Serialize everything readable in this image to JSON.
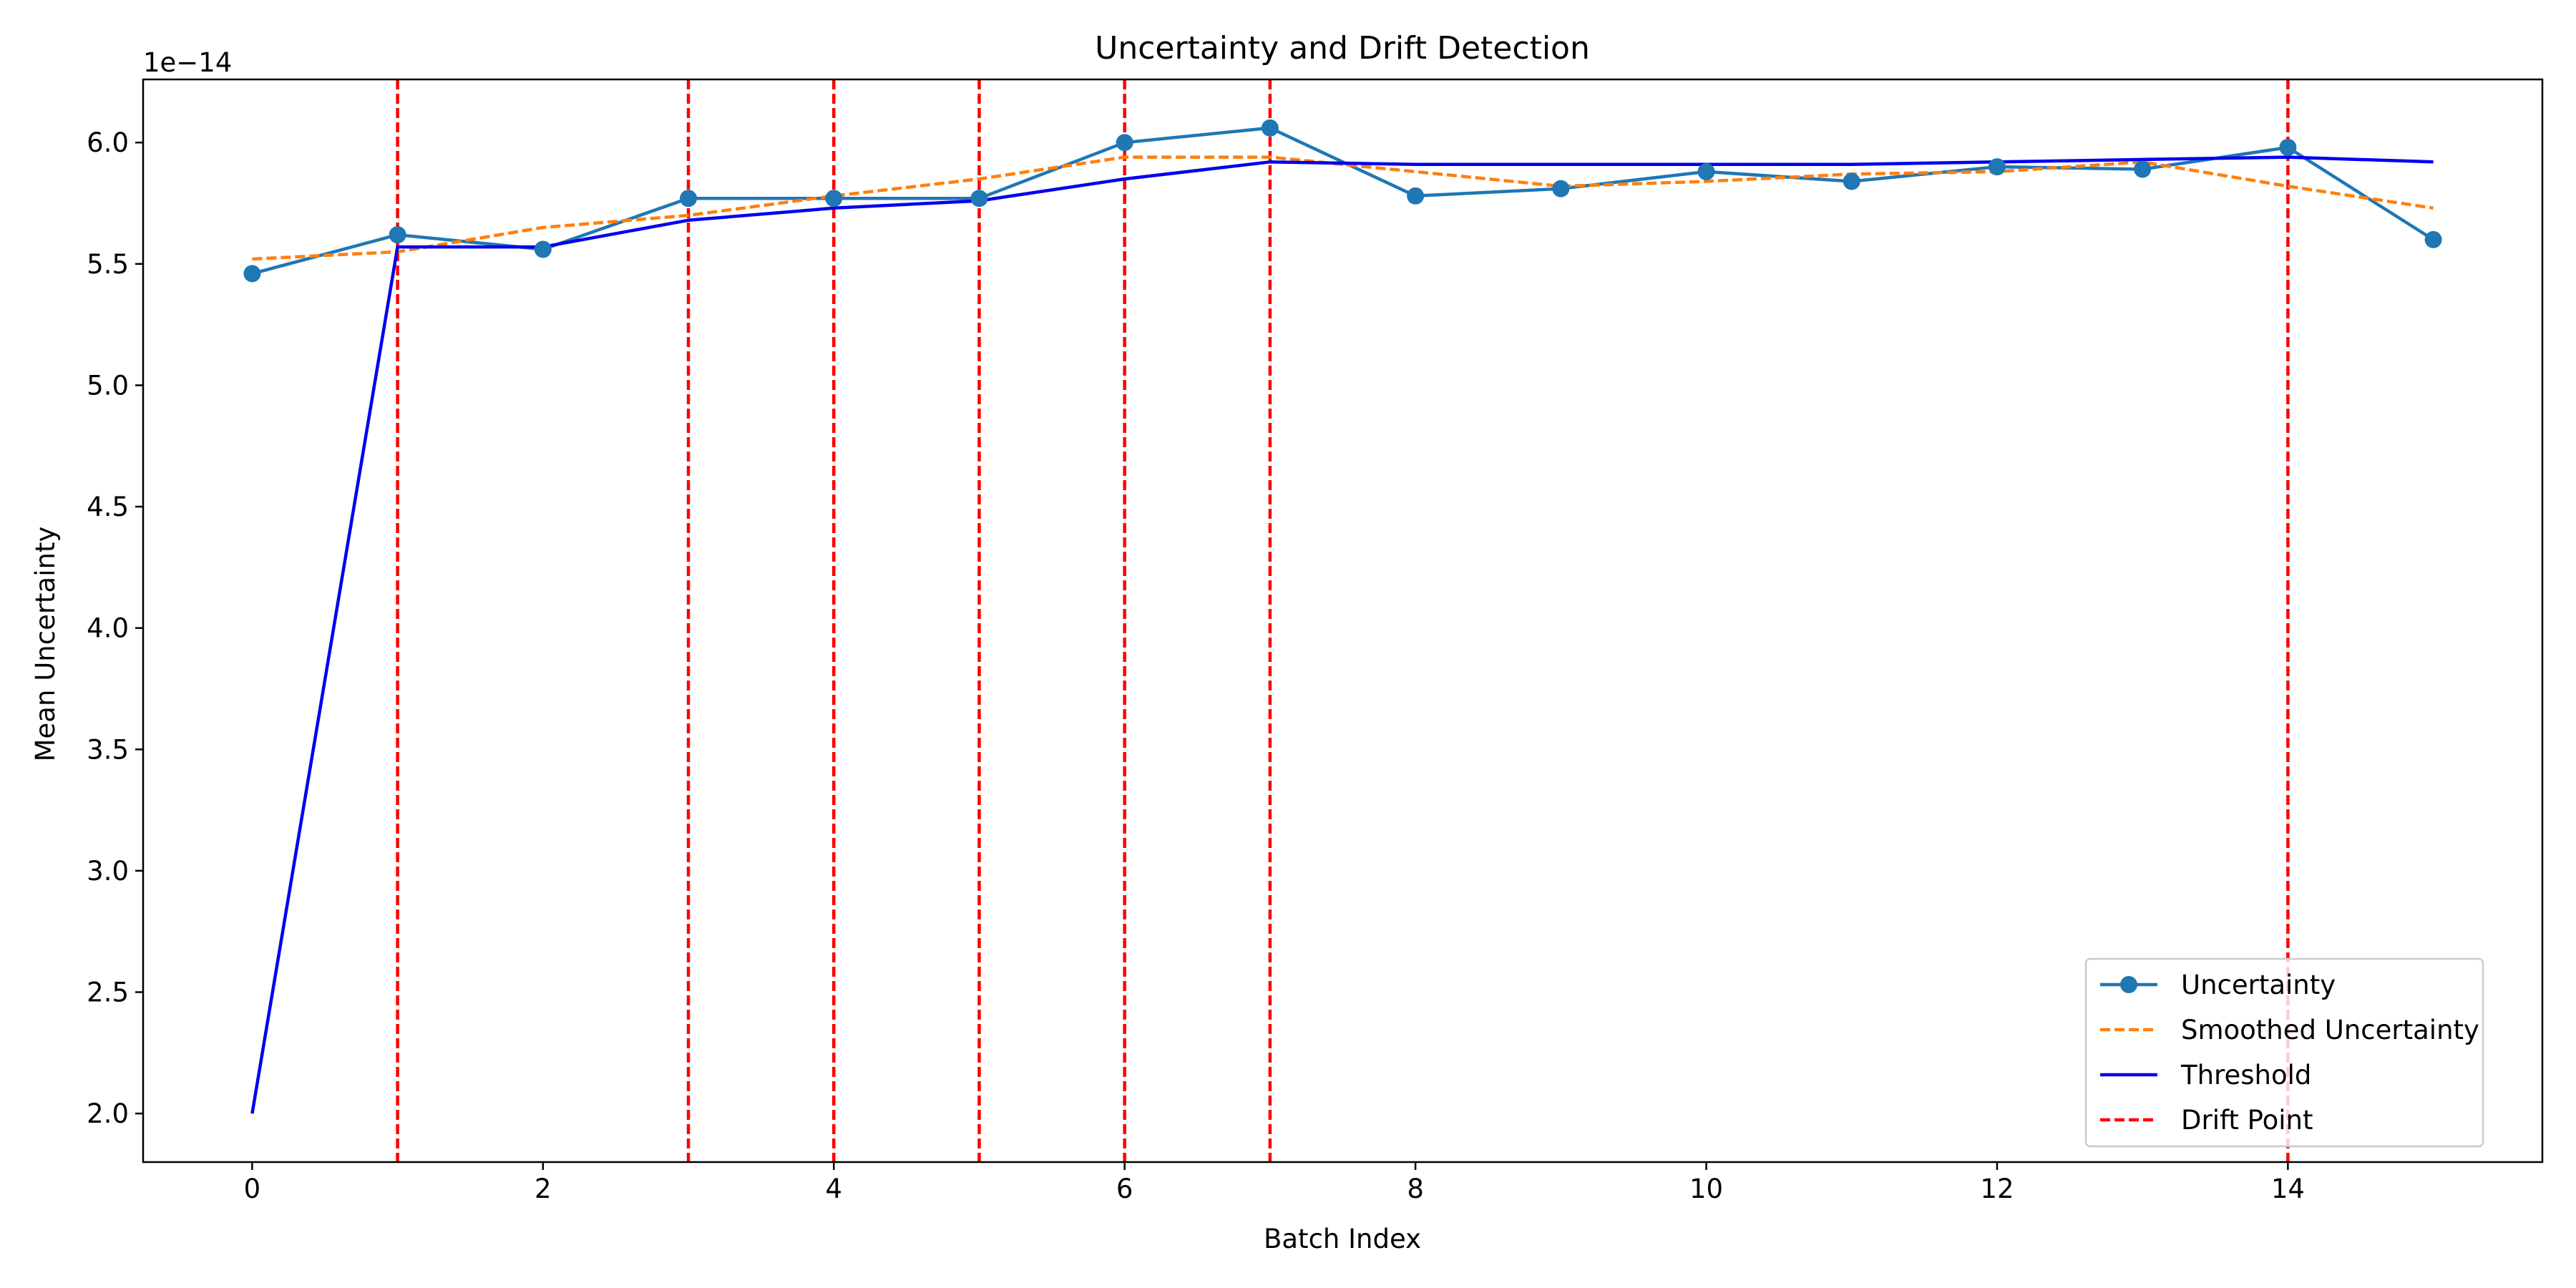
{
  "chart_data": {
    "type": "line",
    "title": "Uncertainty and Drift Detection",
    "xlabel": "Batch Index",
    "ylabel": "Mean Uncertainty",
    "y_offset_label": "1e−14",
    "xlim": [
      -0.75,
      15.75
    ],
    "ylim": [
      1.8,
      6.26
    ],
    "x_ticks": [
      0,
      2,
      4,
      6,
      8,
      10,
      12,
      14
    ],
    "x_tick_labels": [
      "0",
      "2",
      "4",
      "6",
      "8",
      "10",
      "12",
      "14"
    ],
    "y_ticks": [
      2.0,
      2.5,
      3.0,
      3.5,
      4.0,
      4.5,
      5.0,
      5.5,
      6.0
    ],
    "y_tick_labels": [
      "2.0",
      "2.5",
      "3.0",
      "3.5",
      "4.0",
      "4.5",
      "5.0",
      "5.5",
      "6.0"
    ],
    "grid": false,
    "legend_position": "lower right",
    "x": [
      0,
      1,
      2,
      3,
      4,
      5,
      6,
      7,
      8,
      9,
      10,
      11,
      12,
      13,
      14,
      15
    ],
    "series": [
      {
        "name": "Uncertainty",
        "style": "solid-with-markers",
        "color": "#1f77b4",
        "values": [
          5.46,
          5.62,
          5.56,
          5.77,
          5.77,
          5.77,
          6.0,
          6.06,
          5.78,
          5.81,
          5.88,
          5.84,
          5.9,
          5.89,
          5.98,
          5.6
        ]
      },
      {
        "name": "Smoothed Uncertainty",
        "style": "dashed",
        "color": "#ff7f0e",
        "values": [
          5.52,
          5.55,
          5.65,
          5.7,
          5.78,
          5.85,
          5.94,
          5.94,
          5.88,
          5.82,
          5.84,
          5.87,
          5.88,
          5.92,
          5.82,
          5.73
        ]
      },
      {
        "name": "Threshold",
        "style": "solid",
        "color": "#0000ee",
        "values": [
          2.0,
          5.57,
          5.57,
          5.68,
          5.73,
          5.76,
          5.85,
          5.92,
          5.91,
          5.91,
          5.91,
          5.91,
          5.92,
          5.93,
          5.94,
          5.92
        ]
      }
    ],
    "drift_points": {
      "name": "Drift Point",
      "style": "dashed-vertical",
      "color": "#ff0000",
      "x": [
        1,
        3,
        4,
        5,
        6,
        7,
        14
      ]
    }
  }
}
